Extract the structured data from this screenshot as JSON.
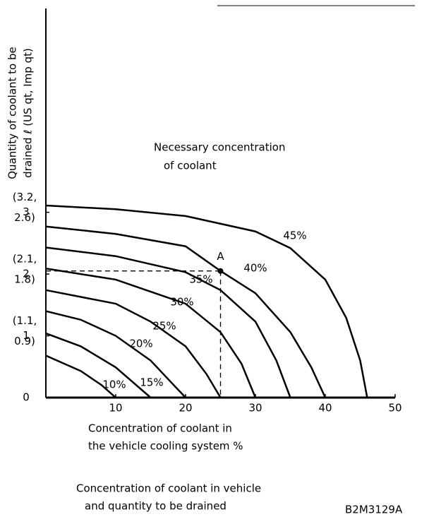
{
  "chart_data": {
    "type": "line",
    "y_title": [
      "Quantity of coolant to be",
      "drained ℓ (US qt, Imp qt)"
    ],
    "x_title": [
      "Concentration of coolant in",
      "the vehicle cooling system %"
    ],
    "annotation": [
      "Necessary concentration",
      "of coolant"
    ],
    "caption": [
      "Concentration of coolant in vehicle",
      "and quantity to be drained"
    ],
    "code": "B2M3129A",
    "point": {
      "label": "A",
      "x": 25,
      "y": 2.05
    },
    "xlim": [
      0,
      50
    ],
    "xticks": [
      10,
      20,
      30,
      40,
      50
    ],
    "ylim": [
      0,
      6.3
    ],
    "yticks": [
      0,
      1,
      2,
      3
    ],
    "y_notes": [
      [
        "(1.1,",
        "0.9)"
      ],
      [
        "(2.1,",
        "1.8)"
      ],
      [
        "(3.2,",
        "2.6)"
      ]
    ],
    "series": [
      {
        "name": "10%",
        "color": "#000000",
        "x": [
          0,
          5,
          8,
          10
        ],
        "values": [
          0.68,
          0.43,
          0.2,
          0
        ]
      },
      {
        "name": "15%",
        "color": "#000000",
        "x": [
          0,
          5,
          10,
          15
        ],
        "values": [
          1.04,
          0.83,
          0.49,
          0
        ]
      },
      {
        "name": "20%",
        "color": "#000000",
        "x": [
          0,
          5,
          10,
          15,
          20
        ],
        "values": [
          1.4,
          1.26,
          1.0,
          0.6,
          0
        ]
      },
      {
        "name": "25%",
        "color": "#000000",
        "x": [
          0,
          10,
          15,
          20,
          23,
          25
        ],
        "values": [
          1.74,
          1.52,
          1.23,
          0.83,
          0.38,
          0
        ]
      },
      {
        "name": "30%",
        "color": "#000000",
        "x": [
          0,
          10,
          20,
          25,
          28,
          30
        ],
        "values": [
          2.09,
          1.91,
          1.52,
          1.06,
          0.55,
          0
        ]
      },
      {
        "name": "35%",
        "color": "#000000",
        "x": [
          0,
          10,
          20,
          25,
          30,
          33,
          35
        ],
        "values": [
          2.43,
          2.29,
          2.03,
          1.74,
          1.23,
          0.6,
          0
        ]
      },
      {
        "name": "40%",
        "color": "#000000",
        "x": [
          0,
          10,
          20,
          25,
          30,
          35,
          38,
          40
        ],
        "values": [
          2.77,
          2.65,
          2.45,
          2.05,
          1.69,
          1.06,
          0.49,
          0
        ]
      },
      {
        "name": "45%",
        "color": "#000000",
        "x": [
          0,
          10,
          20,
          30,
          35,
          40,
          43,
          45,
          46
        ],
        "values": [
          3.11,
          3.05,
          2.94,
          2.69,
          2.42,
          1.91,
          1.29,
          0.6,
          0
        ]
      }
    ]
  }
}
